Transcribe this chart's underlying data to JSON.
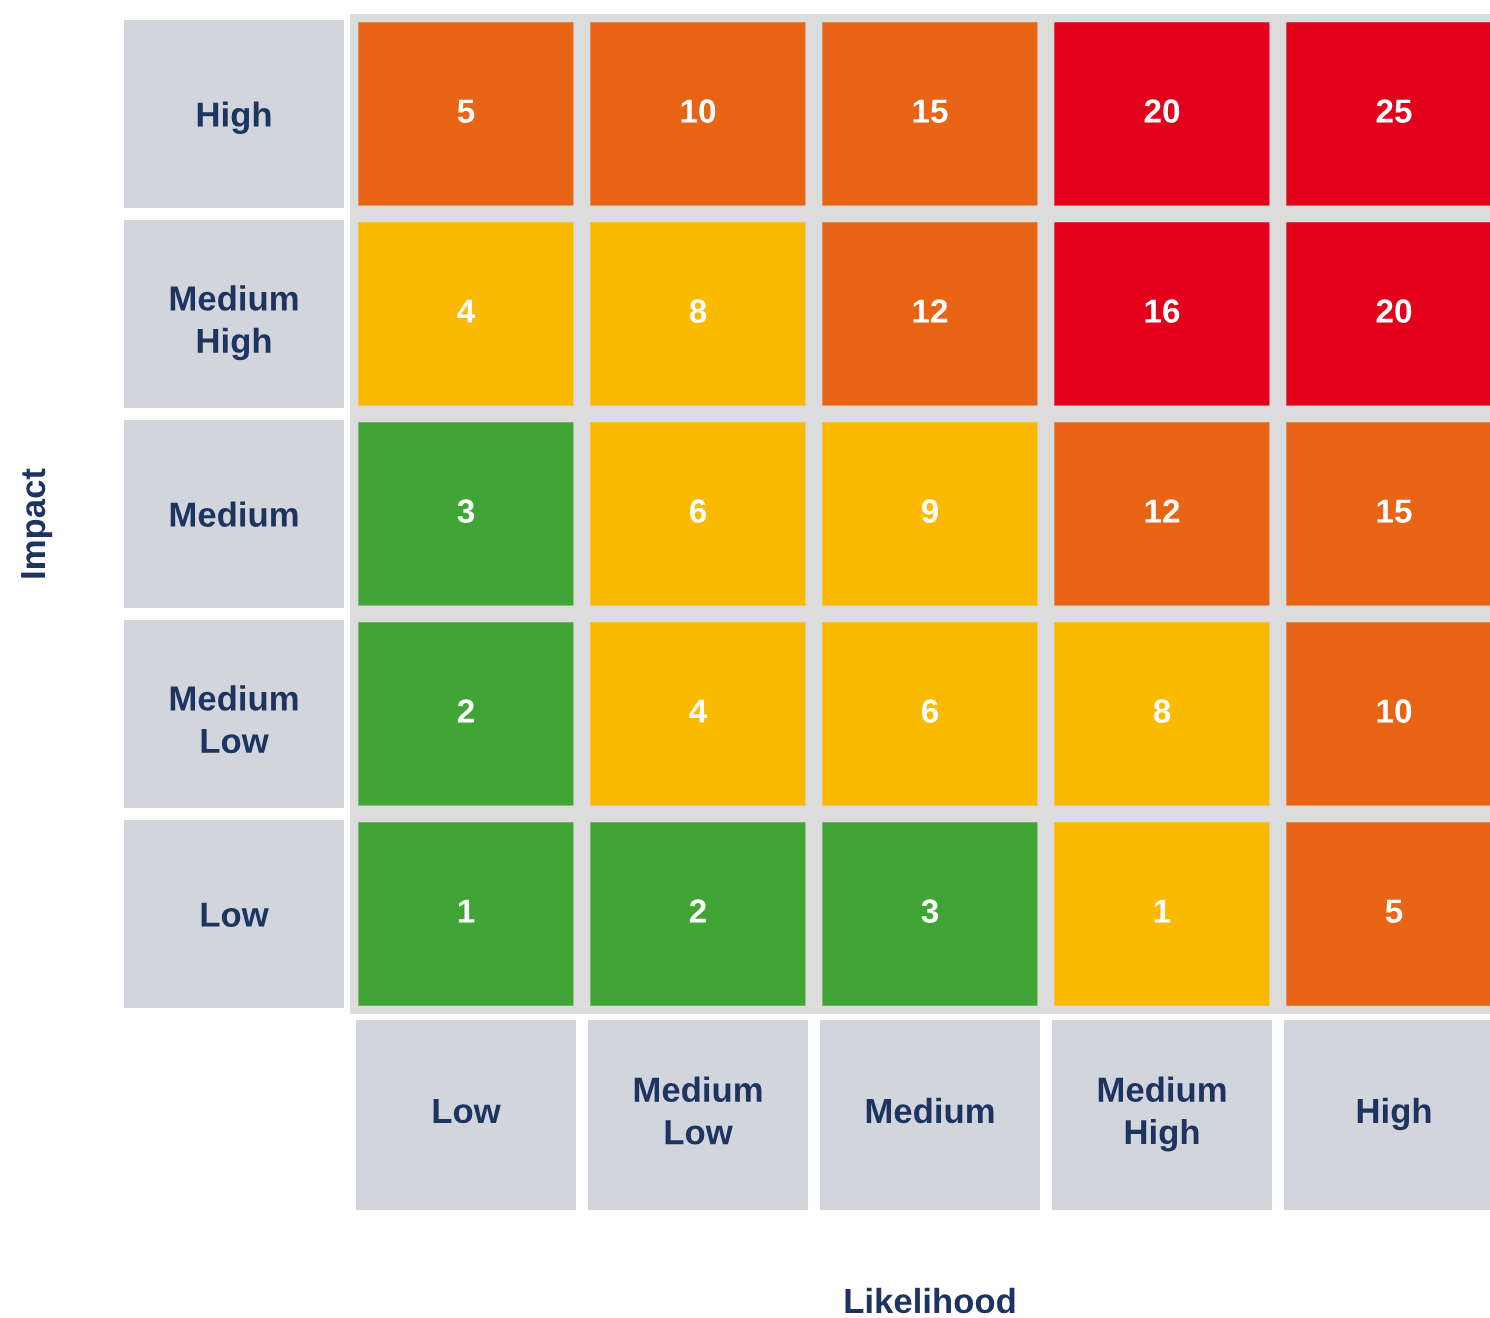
{
  "chart_data": {
    "type": "heatmap",
    "xlabel": "Likelihood",
    "ylabel": "Impact",
    "categories": [
      "Low",
      "Medium\nLow",
      "Medium",
      "Medium\nHigh",
      "High"
    ],
    "y_categories": [
      "High",
      "Medium\nHigh",
      "Medium",
      "Medium\nLow",
      "Low"
    ],
    "cells": [
      [
        5,
        10,
        15,
        20,
        25
      ],
      [
        4,
        8,
        12,
        16,
        20
      ],
      [
        3,
        6,
        9,
        12,
        15
      ],
      [
        2,
        4,
        6,
        8,
        10
      ],
      [
        1,
        2,
        3,
        1,
        5
      ]
    ],
    "colors": [
      [
        "#e96414",
        "#e96414",
        "#e96414",
        "#e2001a",
        "#e2001a"
      ],
      [
        "#fbb900",
        "#fbb900",
        "#e96414",
        "#e2001a",
        "#e2001a"
      ],
      [
        "#40a535",
        "#fbb900",
        "#fbb900",
        "#e96414",
        "#e96414"
      ],
      [
        "#40a535",
        "#fbb900",
        "#fbb900",
        "#fbb900",
        "#e96414"
      ],
      [
        "#40a535",
        "#40a535",
        "#40a535",
        "#fbb900",
        "#e96414"
      ]
    ],
    "data_labels": true,
    "grid": false
  }
}
